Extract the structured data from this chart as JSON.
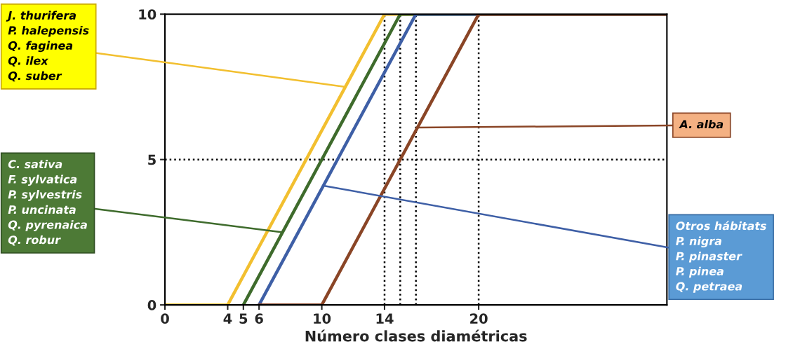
{
  "chart_data": {
    "type": "line",
    "xlabel": "Número clases diamétricas",
    "xlim": [
      0,
      32
    ],
    "ylim": [
      0,
      10
    ],
    "xticks": [
      0,
      4,
      5,
      6,
      10,
      14,
      20
    ],
    "yticks": [
      0,
      5,
      10
    ],
    "grid": false,
    "legend": false,
    "marker": "none",
    "line_style": "solid",
    "series": [
      {
        "color": "#f2bf2f",
        "x": [
          0,
          4,
          14,
          32
        ],
        "values": [
          0,
          0,
          10,
          10
        ]
      },
      {
        "color": "#3e6b2c",
        "x": [
          5,
          15,
          32
        ],
        "values": [
          0,
          10,
          10
        ]
      },
      {
        "color": "#3e5fa6",
        "x": [
          6,
          16,
          32
        ],
        "values": [
          0,
          10,
          10
        ]
      },
      {
        "color": "#8a4526",
        "x": [
          6,
          10,
          20,
          32
        ],
        "values": [
          0,
          0,
          10,
          10
        ]
      }
    ],
    "ref_lines": [
      {
        "axis": "y",
        "value": 5,
        "line_style": "dotted"
      },
      {
        "axis": "x",
        "value": 14,
        "line_style": "dotted"
      },
      {
        "axis": "x",
        "value": 15,
        "line_style": "dotted"
      },
      {
        "axis": "x",
        "value": 16,
        "line_style": "dotted"
      },
      {
        "axis": "x",
        "value": 20,
        "line_style": "dotted"
      }
    ],
    "annotations": [
      {
        "text": "J. thurifera\nP. halepensis\nQ. faginea\nQ. ilex\nQ. suber",
        "x": 11.5,
        "y": 7.5
      },
      {
        "text": "C. sativa\nF. sylvatica\nP. sylvestris\nP. uncinata\nQ. pyrenaica\nQ. robur",
        "x": 7.5,
        "y": 2.5
      },
      {
        "text": "Otros hábitats\nP. nigra\nP. pinaster\nP. pinea\nQ. petraea",
        "x": 10.1,
        "y": 4.1
      },
      {
        "text": "A. alba",
        "x": 16.1,
        "y": 6.1
      }
    ]
  }
}
